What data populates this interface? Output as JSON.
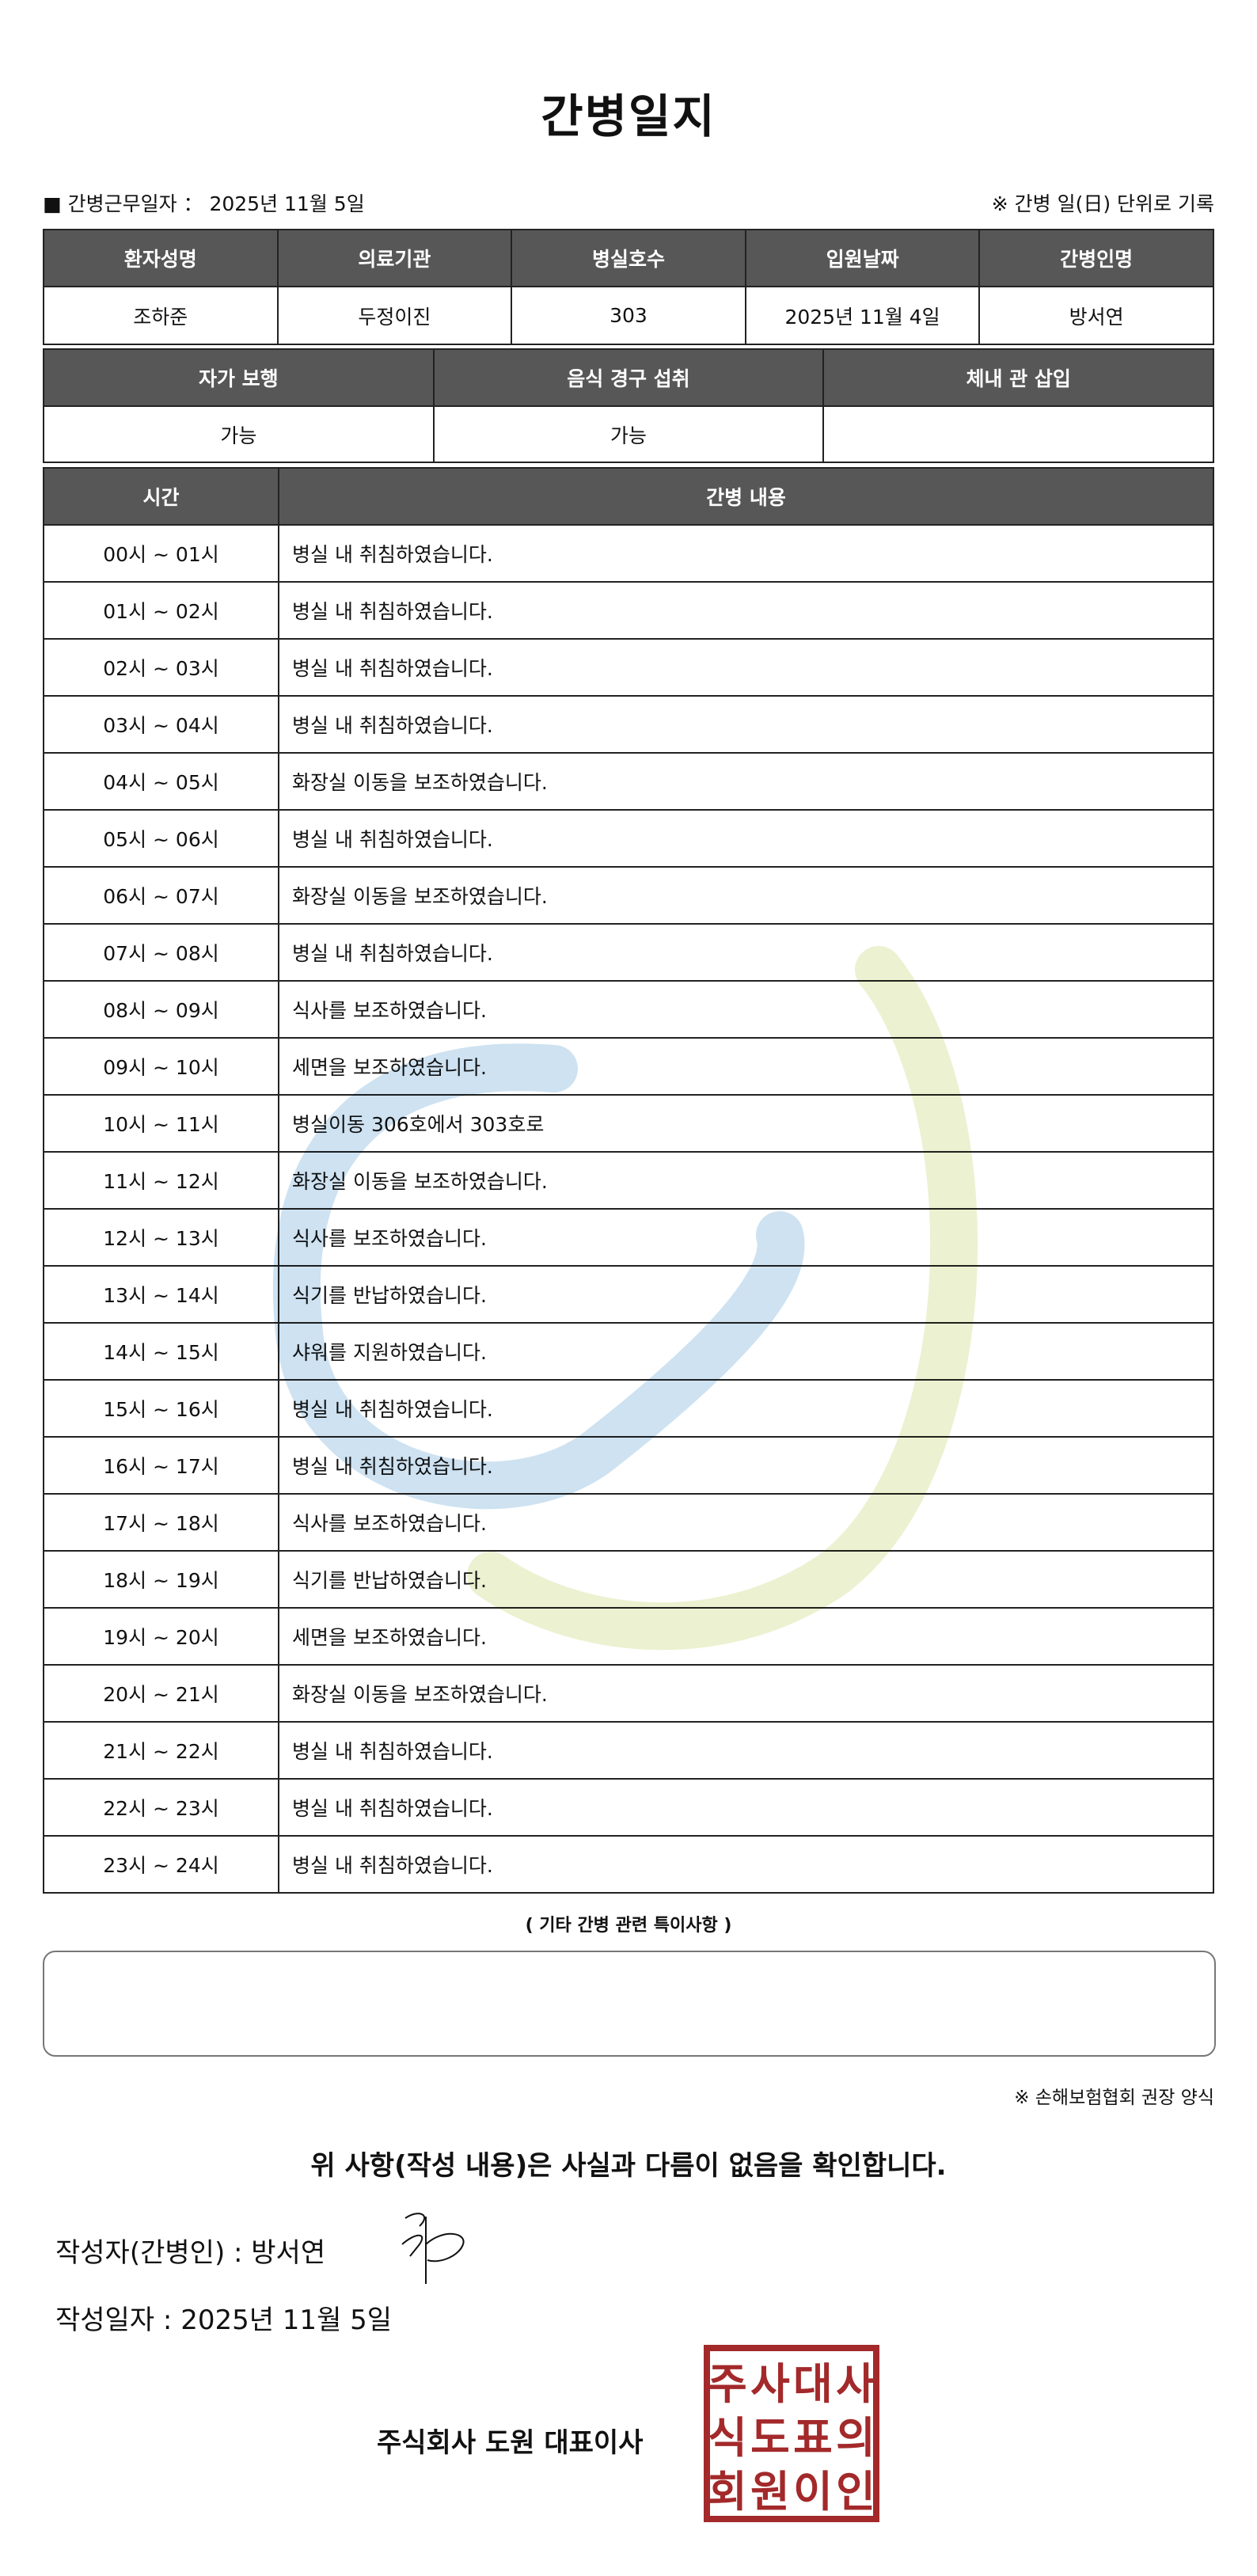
{
  "title": "간병일지",
  "duty_date_label": "■ 간병근무일자 ：  2025년 11월 5일",
  "unit_note": "※ 간병 일(日) 단위로 기록",
  "info_table": {
    "headers": [
      "환자성명",
      "의료기관",
      "병실호수",
      "입원날짜",
      "간병인명"
    ],
    "values": [
      "조하준",
      "두정이진",
      "303",
      "2025년 11월 4일",
      "방서연"
    ]
  },
  "status_table": {
    "headers": [
      "자가 보행",
      "음식 경구 섭취",
      "체내 관 삽입"
    ],
    "values": [
      "가능",
      "가능",
      ""
    ]
  },
  "log_table": {
    "headers": [
      "시간",
      "간병 내용"
    ],
    "rows": [
      {
        "time": "00시 ~ 01시",
        "content": "병실 내 취침하였습니다."
      },
      {
        "time": "01시 ~ 02시",
        "content": "병실 내 취침하였습니다."
      },
      {
        "time": "02시 ~ 03시",
        "content": "병실 내 취침하였습니다."
      },
      {
        "time": "03시 ~ 04시",
        "content": "병실 내 취침하였습니다."
      },
      {
        "time": "04시 ~ 05시",
        "content": "화장실 이동을 보조하였습니다."
      },
      {
        "time": "05시 ~ 06시",
        "content": "병실 내 취침하였습니다."
      },
      {
        "time": "06시 ~ 07시",
        "content": "화장실 이동을 보조하였습니다."
      },
      {
        "time": "07시 ~ 08시",
        "content": "병실 내 취침하였습니다."
      },
      {
        "time": "08시 ~ 09시",
        "content": "식사를 보조하였습니다."
      },
      {
        "time": "09시 ~ 10시",
        "content": "세면을 보조하였습니다."
      },
      {
        "time": "10시 ~ 11시",
        "content": "병실이동 306호에서 303호로"
      },
      {
        "time": "11시 ~ 12시",
        "content": "화장실 이동을 보조하였습니다."
      },
      {
        "time": "12시 ~ 13시",
        "content": "식사를 보조하였습니다."
      },
      {
        "time": "13시 ~ 14시",
        "content": "식기를 반납하였습니다."
      },
      {
        "time": "14시 ~ 15시",
        "content": "샤워를 지원하였습니다."
      },
      {
        "time": "15시 ~ 16시",
        "content": "병실 내 취침하였습니다."
      },
      {
        "time": "16시 ~ 17시",
        "content": "병실 내 취침하였습니다."
      },
      {
        "time": "17시 ~ 18시",
        "content": "식사를 보조하였습니다."
      },
      {
        "time": "18시 ~ 19시",
        "content": "식기를 반납하였습니다."
      },
      {
        "time": "19시 ~ 20시",
        "content": "세면을 보조하였습니다."
      },
      {
        "time": "20시 ~ 21시",
        "content": "화장실 이동을 보조하였습니다."
      },
      {
        "time": "21시 ~ 22시",
        "content": "병실 내 취침하였습니다."
      },
      {
        "time": "22시 ~ 23시",
        "content": "병실 내 취침하였습니다."
      },
      {
        "time": "23시 ~ 24시",
        "content": "병실 내 취침하였습니다."
      }
    ]
  },
  "notes_label": "( 기타 간병 관련 특이사항 )",
  "notes_value": "",
  "form_note": "※ 손해보험협회 권장 양식",
  "confirmation": "위 사항(작성 내용)은 사실과 다름이 없음을 확인합니다.",
  "writer_label": "작성자(간병인) :   방서연",
  "written_date": "작성일자 :   2025년 11월 5일",
  "company": "주식회사 도원   대표이사",
  "seal_text": "주식회사도원대표이사의인",
  "colors": {
    "header_bg": "#575757",
    "seal": "#a3292a",
    "watermark_blue": "#c9dff0",
    "watermark_green": "#eaf0cc"
  }
}
